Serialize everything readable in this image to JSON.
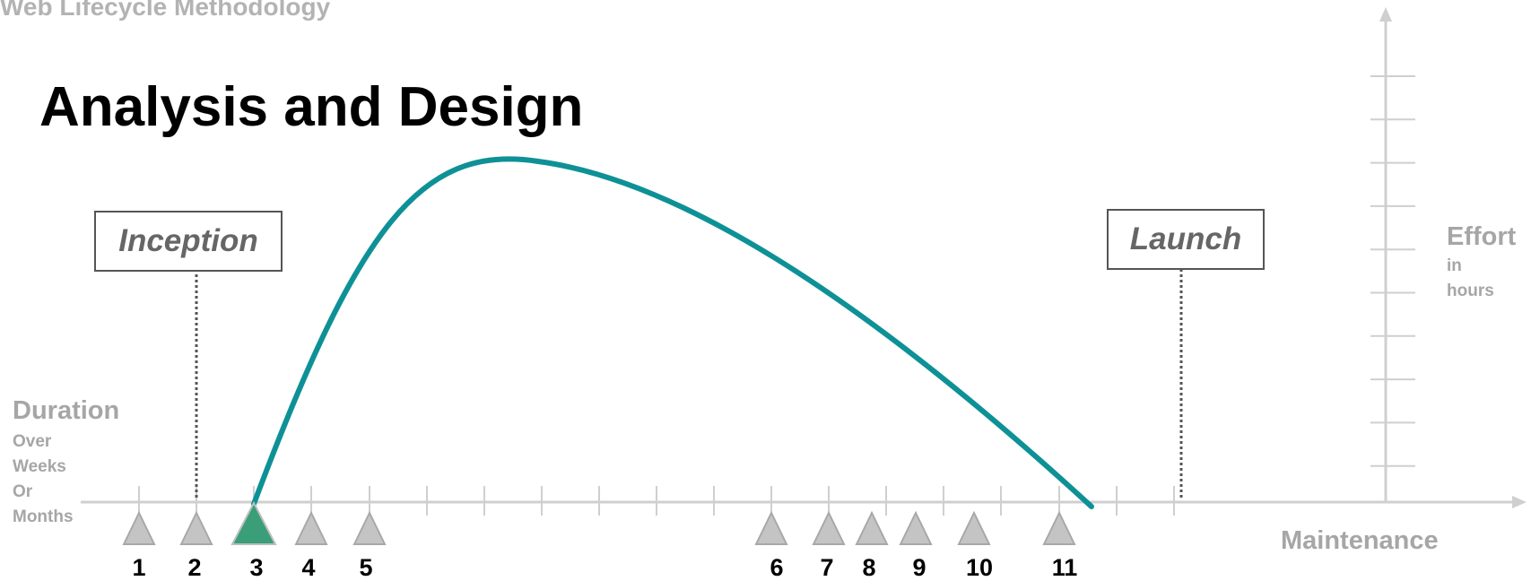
{
  "header": "Web Lifecycle Methodology",
  "title": "Analysis and Design",
  "phases": {
    "inception": "Inception",
    "launch": "Launch"
  },
  "x_axis": {
    "label": "Duration",
    "sublabel": [
      "Over",
      "Weeks",
      "Or",
      "Months"
    ]
  },
  "y_axis": {
    "label": "Effort",
    "sublabel": [
      "in",
      "hours"
    ]
  },
  "maintenance": "Maintenance",
  "milestones": [
    {
      "label": "1",
      "active": false
    },
    {
      "label": "2",
      "active": false
    },
    {
      "label": "3",
      "active": true
    },
    {
      "label": "4",
      "active": false
    },
    {
      "label": "5",
      "active": false
    },
    {
      "label": "6",
      "active": false
    },
    {
      "label": "7",
      "active": false
    },
    {
      "label": "8",
      "active": false
    },
    {
      "label": "9",
      "active": false
    },
    {
      "label": "10",
      "active": false
    },
    {
      "label": "11",
      "active": false
    }
  ],
  "colors": {
    "curve": "#0e9196",
    "active_marker": "#3a9e78",
    "marker": "#c4c4c4",
    "axis": "#cfcfcf"
  }
}
